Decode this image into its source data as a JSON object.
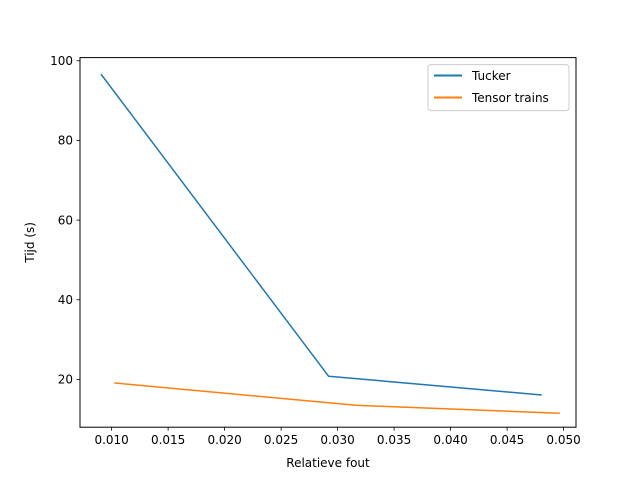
{
  "chart_data": {
    "type": "line",
    "title": "",
    "xlabel": "Relatieve fout",
    "ylabel": "Tijd (s)",
    "xlim": [
      0.0072,
      0.0511
    ],
    "ylim": [
      8.0,
      100.8
    ],
    "xticks": [
      0.01,
      0.015,
      0.02,
      0.025,
      0.03,
      0.035,
      0.04,
      0.045,
      0.05
    ],
    "xtick_labels": [
      "0.010",
      "0.015",
      "0.020",
      "0.025",
      "0.030",
      "0.035",
      "0.040",
      "0.045",
      "0.050"
    ],
    "yticks": [
      20,
      40,
      60,
      80,
      100
    ],
    "ytick_labels": [
      "20",
      "40",
      "60",
      "80",
      "100"
    ],
    "grid": false,
    "legend_position": "top-right",
    "series": [
      {
        "name": "Tucker",
        "color": "#1f77b4",
        "x": [
          0.0091,
          0.0292,
          0.048
        ],
        "y": [
          96.5,
          20.8,
          16.1
        ]
      },
      {
        "name": "Tensor trains",
        "color": "#ff7f0e",
        "x": [
          0.0103,
          0.0316,
          0.0496
        ],
        "y": [
          19.1,
          13.5,
          11.5
        ]
      }
    ]
  }
}
